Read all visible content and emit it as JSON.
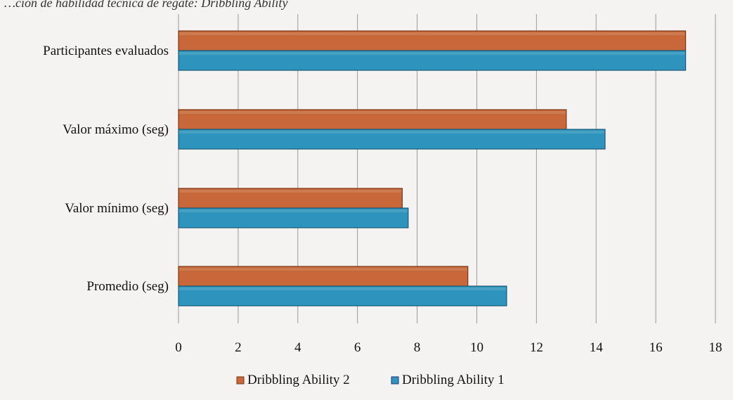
{
  "caption_fragment": "…ción de habilidad técnica de regate: Dribbling Ability",
  "chart_data": {
    "type": "bar",
    "orientation": "horizontal",
    "categories": [
      "Participantes evaluados",
      "Valor máximo (seg)",
      "Valor mínimo (seg)",
      "Promedio (seg)"
    ],
    "series": [
      {
        "name": "Dribbling Ability 2",
        "values": [
          17,
          13,
          7.5,
          9.7
        ],
        "color": "#c8683a"
      },
      {
        "name": "Dribbling Ability 1",
        "values": [
          17,
          14.3,
          7.7,
          11
        ],
        "color": "#2e94bd"
      }
    ],
    "x_ticks": [
      0,
      2,
      4,
      6,
      8,
      10,
      12,
      14,
      16,
      18
    ],
    "xlim": [
      0,
      18
    ],
    "grid": "vertical",
    "legend_position": "bottom"
  }
}
